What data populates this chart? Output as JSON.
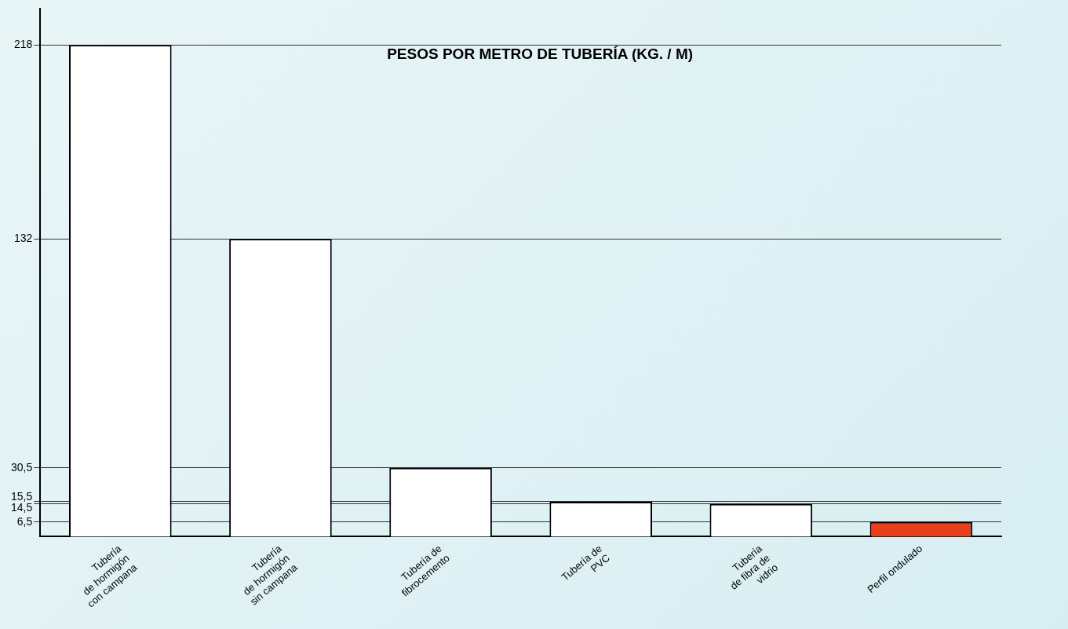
{
  "chart_data": {
    "type": "bar",
    "title": "PESOS POR METRO DE TUBERÍA (KG. / M)",
    "categories": [
      "Tubería\nde hormigón\ncon campana",
      "Tubería\nde hormigón\nsin campana",
      "Tubería de\nfibrocemento",
      "Tubería de\nPVC",
      "Tubería\nde fibra de\nvidrio",
      "Perfil ondulado"
    ],
    "values": [
      218,
      132,
      30.5,
      15.5,
      14.5,
      6.5
    ],
    "colors": [
      "#ffffff",
      "#ffffff",
      "#ffffff",
      "#ffffff",
      "#ffffff",
      "#e8401c"
    ],
    "ylim": [
      0,
      234
    ],
    "yticks": [
      {
        "value": 6.5,
        "label": "6,5"
      },
      {
        "value": 14.5,
        "label": "14,5"
      },
      {
        "value": 15.5,
        "label": "15,5"
      },
      {
        "value": 30.5,
        "label": "30,5"
      },
      218,
      132
    ],
    "grid": "y"
  }
}
